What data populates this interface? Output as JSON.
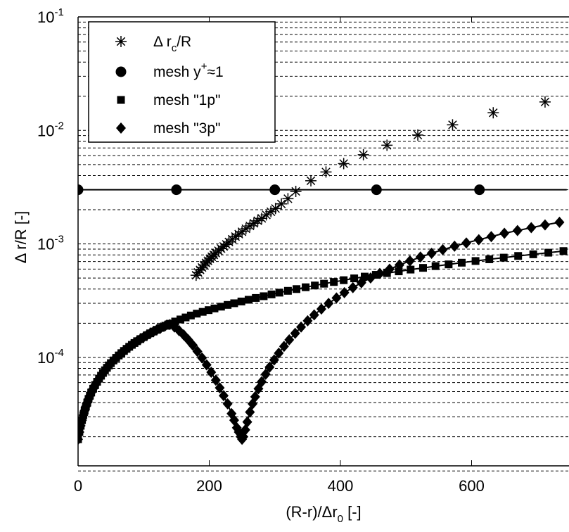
{
  "chart_data": {
    "type": "scatter",
    "xlabel": {
      "pre": "(R-r)/Δr",
      "sub": "0",
      "post": "  [-]"
    },
    "ylabel": "Δ r/R  [-]",
    "x_ticks": [
      0,
      200,
      400,
      600
    ],
    "x_tick_labels": [
      "0",
      "200",
      "400",
      "600"
    ],
    "xlim": [
      0,
      745
    ],
    "ylim": [
      1e-05,
      0.1
    ],
    "yscale": "log",
    "y_tick_labels": [
      {
        "base": "10",
        "exp": "-4",
        "value": 0.0001
      },
      {
        "base": "10",
        "exp": "-3",
        "value": 0.001
      },
      {
        "base": "10",
        "exp": "-2",
        "value": 0.01
      },
      {
        "base": "10",
        "exp": "-1",
        "value": 0.1
      }
    ],
    "grid": "y-major-and-minor dashed",
    "legend": {
      "placement": "top-left",
      "entries": [
        {
          "marker": "asterisk",
          "pre": "Δ r",
          "sub": "c",
          "sup": "",
          "post": "/R"
        },
        {
          "marker": "circle",
          "pre": "mesh y",
          "sub": "",
          "sup": "+",
          "post": "≈1"
        },
        {
          "marker": "square",
          "pre": "mesh \"1p\"",
          "sub": "",
          "sup": "",
          "post": ""
        },
        {
          "marker": "diamond",
          "pre": "mesh \"3p\"",
          "sub": "",
          "sup": "",
          "post": ""
        }
      ]
    },
    "series": [
      {
        "name": "Δ rc/R",
        "marker": "asterisk",
        "line": false,
        "x": [
          180,
          183,
          186,
          189,
          192,
          195,
          198,
          201,
          204,
          207,
          210,
          214,
          218,
          222,
          226,
          230,
          235,
          240,
          245,
          250,
          256,
          262,
          268,
          274,
          280,
          287,
          294,
          301,
          310,
          320,
          332,
          355,
          378,
          405,
          435,
          471,
          518,
          571,
          633,
          712
        ],
        "y": [
          0.00053,
          0.00056,
          0.00059,
          0.00062,
          0.00065,
          0.00068,
          0.00071,
          0.00074,
          0.00077,
          0.0008,
          0.00083,
          0.00087,
          0.00091,
          0.00095,
          0.00099,
          0.00104,
          0.0011,
          0.00116,
          0.00122,
          0.00128,
          0.00136,
          0.00144,
          0.00152,
          0.0016,
          0.00168,
          0.0018,
          0.00192,
          0.00205,
          0.00225,
          0.0025,
          0.0029,
          0.0036,
          0.0043,
          0.0051,
          0.0061,
          0.0074,
          0.0091,
          0.0112,
          0.0143,
          0.0178
        ]
      },
      {
        "name": "mesh y+≈1",
        "marker": "circle",
        "line": true,
        "x": [
          0,
          150,
          300,
          455,
          612,
          745
        ],
        "y": [
          0.003,
          0.003,
          0.003,
          0.003,
          0.003,
          0.003
        ],
        "marker_x": [
          0,
          150,
          300,
          455,
          612
        ]
      },
      {
        "name": "mesh \"1p\"",
        "marker": "square",
        "line": true,
        "x": [
          0,
          2,
          4,
          6,
          8,
          10,
          12,
          14,
          16,
          18,
          20,
          23,
          26,
          29,
          32,
          35,
          38,
          41,
          44,
          47,
          50,
          54,
          58,
          62,
          66,
          70,
          74,
          78,
          82,
          86,
          90,
          95,
          100,
          105,
          110,
          115,
          120,
          126,
          133,
          140,
          148,
          156,
          164,
          172,
          181,
          190,
          199,
          208,
          218,
          228,
          238,
          249,
          260,
          271,
          283,
          295,
          307,
          320,
          333,
          347,
          361,
          375,
          390,
          405,
          421,
          437,
          454,
          471,
          489,
          507,
          526,
          545,
          565,
          585,
          606,
          627,
          649,
          671,
          694,
          717,
          740
        ],
        "y": [
          1.9e-05,
          2.2e-05,
          2.5e-05,
          2.8e-05,
          3.1e-05,
          3.4e-05,
          3.7e-05,
          4e-05,
          4.3e-05,
          4.6e-05,
          4.9e-05,
          5.3e-05,
          5.7e-05,
          6.1e-05,
          6.5e-05,
          6.9e-05,
          7.3e-05,
          7.7e-05,
          8.1e-05,
          8.5e-05,
          8.9e-05,
          9.4e-05,
          9.9e-05,
          0.000104,
          0.000109,
          0.000114,
          0.000119,
          0.000124,
          0.000129,
          0.000134,
          0.000139,
          0.000145,
          0.000151,
          0.000157,
          0.000163,
          0.000169,
          0.000175,
          0.000182,
          0.00019,
          0.000198,
          0.000207,
          0.000216,
          0.000225,
          0.000234,
          0.000243,
          0.000252,
          0.000261,
          0.00027,
          0.00028,
          0.00029,
          0.0003,
          0.000311,
          0.000322,
          0.000334,
          0.000346,
          0.000359,
          0.000372,
          0.000386,
          0.0004,
          0.000415,
          0.00043,
          0.000446,
          0.000462,
          0.000479,
          0.000497,
          0.000515,
          0.000534,
          0.000553,
          0.000573,
          0.000594,
          0.000615,
          0.000637,
          0.00066,
          0.000683,
          0.000707,
          0.000732,
          0.000757,
          0.000783,
          0.00081,
          0.000837,
          0.000865
        ]
      },
      {
        "name": "mesh \"3p\"",
        "marker": "diamond",
        "line": true,
        "x": [
          0,
          2,
          4,
          6,
          8,
          10,
          12,
          14,
          16,
          18,
          20,
          23,
          26,
          29,
          32,
          35,
          38,
          41,
          44,
          47,
          50,
          54,
          58,
          62,
          66,
          70,
          74,
          78,
          82,
          86,
          90,
          95,
          100,
          105,
          110,
          115,
          120,
          126,
          133,
          140,
          147,
          154,
          161,
          168,
          175,
          182,
          189,
          196,
          203,
          210,
          216,
          222,
          228,
          234,
          238,
          242,
          245,
          248,
          250,
          252,
          255,
          258,
          262,
          266,
          270,
          275,
          280,
          286,
          292,
          299,
          306,
          314,
          322,
          331,
          340,
          350,
          360,
          371,
          382,
          394,
          406,
          419,
          432,
          446,
          460,
          475,
          490,
          506,
          522,
          539,
          556,
          574,
          592,
          611,
          630,
          650,
          670,
          691,
          712,
          734
        ],
        "y": [
          1.9e-05,
          2.2e-05,
          2.5e-05,
          2.8e-05,
          3.1e-05,
          3.4e-05,
          3.7e-05,
          4e-05,
          4.3e-05,
          4.6e-05,
          4.9e-05,
          5.3e-05,
          5.7e-05,
          6.1e-05,
          6.5e-05,
          6.9e-05,
          7.3e-05,
          7.7e-05,
          8.1e-05,
          8.5e-05,
          8.9e-05,
          9.4e-05,
          9.9e-05,
          0.000104,
          0.000109,
          0.000114,
          0.000119,
          0.000124,
          0.000129,
          0.000134,
          0.000139,
          0.000145,
          0.000151,
          0.000157,
          0.000163,
          0.000169,
          0.000175,
          0.000182,
          0.00019,
          0.000195,
          0.000185,
          0.000172,
          0.000158,
          0.000143,
          0.000128,
          0.000113,
          9.9e-05,
          8.6e-05,
          7.4e-05,
          6.3e-05,
          5.4e-05,
          4.6e-05,
          3.9e-05,
          3.2e-05,
          2.8e-05,
          2.4e-05,
          2.2e-05,
          2e-05,
          1.9e-05,
          2e-05,
          2.3e-05,
          2.7e-05,
          3.3e-05,
          3.9e-05,
          4.5e-05,
          5.3e-05,
          6.1e-05,
          7.1e-05,
          8.2e-05,
          9.5e-05,
          0.000109,
          0.000125,
          0.000143,
          0.000163,
          0.000185,
          0.00021,
          0.000237,
          0.000267,
          0.000299,
          0.000334,
          0.000372,
          0.000412,
          0.000455,
          0.000501,
          0.000549,
          0.000599,
          0.000652,
          0.000708,
          0.000766,
          0.000826,
          0.000889,
          0.000954,
          0.00102,
          0.00109,
          0.00116,
          0.00124,
          0.00131,
          0.00139,
          0.00147,
          0.00155
        ]
      }
    ]
  }
}
